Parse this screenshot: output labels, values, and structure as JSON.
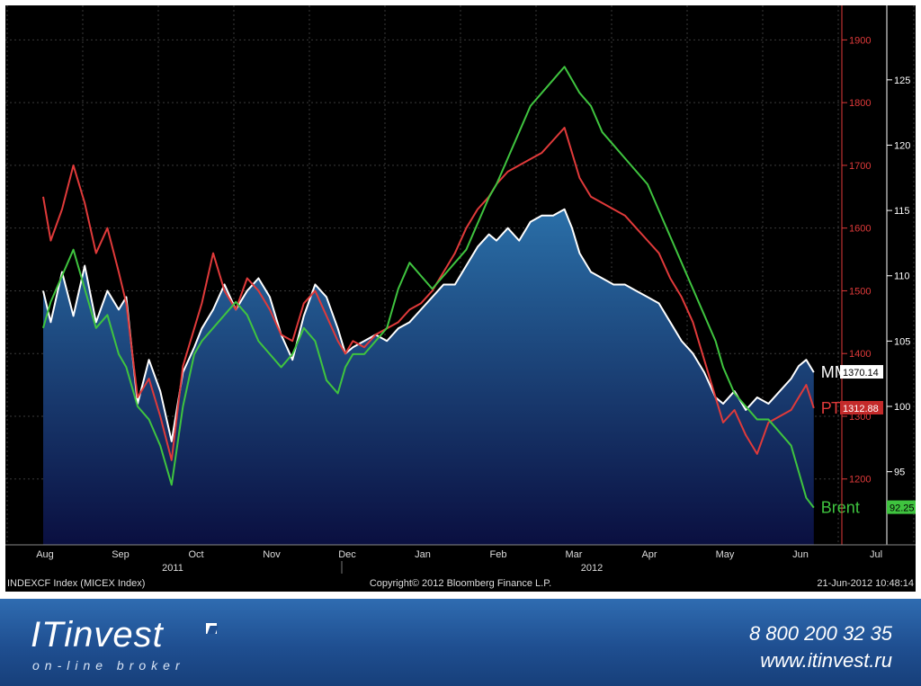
{
  "chart_data": {
    "type": "line",
    "x_labels": [
      "Aug",
      "Sep",
      "Oct",
      "Nov",
      "Dec",
      "Jan",
      "Feb",
      "Mar",
      "Apr",
      "May",
      "Jun",
      "Jul"
    ],
    "year_labels": [
      "2011",
      "2012"
    ],
    "left_axis_ticks": [
      1200,
      1300,
      1400,
      1500,
      1600,
      1700,
      1800,
      1900
    ],
    "right_axis_ticks": [
      95,
      100,
      105,
      110,
      115,
      120,
      125
    ],
    "ylim_left": [
      1095,
      1955
    ],
    "ylim_right": [
      89.4,
      130.7
    ],
    "series": [
      {
        "name": "ММВБ",
        "axis": "left",
        "color": "#ffffff",
        "last_value": "1370.14",
        "values": [
          [
            0,
            1500
          ],
          [
            0.1,
            1450
          ],
          [
            0.25,
            1530
          ],
          [
            0.4,
            1460
          ],
          [
            0.55,
            1540
          ],
          [
            0.7,
            1450
          ],
          [
            0.85,
            1500
          ],
          [
            1.0,
            1470
          ],
          [
            1.1,
            1490
          ],
          [
            1.25,
            1320
          ],
          [
            1.4,
            1390
          ],
          [
            1.55,
            1340
          ],
          [
            1.7,
            1260
          ],
          [
            1.85,
            1370
          ],
          [
            2.0,
            1410
          ],
          [
            2.1,
            1440
          ],
          [
            2.25,
            1470
          ],
          [
            2.4,
            1510
          ],
          [
            2.55,
            1470
          ],
          [
            2.7,
            1500
          ],
          [
            2.85,
            1520
          ],
          [
            3.0,
            1490
          ],
          [
            3.15,
            1430
          ],
          [
            3.3,
            1390
          ],
          [
            3.45,
            1460
          ],
          [
            3.6,
            1510
          ],
          [
            3.75,
            1490
          ],
          [
            3.9,
            1440
          ],
          [
            4.0,
            1400
          ],
          [
            4.1,
            1410
          ],
          [
            4.25,
            1420
          ],
          [
            4.4,
            1430
          ],
          [
            4.55,
            1420
          ],
          [
            4.7,
            1440
          ],
          [
            4.85,
            1450
          ],
          [
            5.0,
            1470
          ],
          [
            5.15,
            1490
          ],
          [
            5.3,
            1510
          ],
          [
            5.45,
            1510
          ],
          [
            5.6,
            1540
          ],
          [
            5.75,
            1570
          ],
          [
            5.9,
            1590
          ],
          [
            6.0,
            1580
          ],
          [
            6.15,
            1600
          ],
          [
            6.3,
            1580
          ],
          [
            6.45,
            1610
          ],
          [
            6.6,
            1620
          ],
          [
            6.75,
            1620
          ],
          [
            6.9,
            1630
          ],
          [
            7.0,
            1600
          ],
          [
            7.1,
            1560
          ],
          [
            7.25,
            1530
          ],
          [
            7.4,
            1520
          ],
          [
            7.55,
            1510
          ],
          [
            7.7,
            1510
          ],
          [
            7.85,
            1500
          ],
          [
            8.0,
            1490
          ],
          [
            8.15,
            1480
          ],
          [
            8.3,
            1450
          ],
          [
            8.45,
            1420
          ],
          [
            8.6,
            1400
          ],
          [
            8.75,
            1370
          ],
          [
            8.9,
            1330
          ],
          [
            9.0,
            1320
          ],
          [
            9.15,
            1340
          ],
          [
            9.3,
            1310
          ],
          [
            9.45,
            1330
          ],
          [
            9.6,
            1320
          ],
          [
            9.75,
            1340
          ],
          [
            9.9,
            1360
          ],
          [
            10.0,
            1380
          ],
          [
            10.1,
            1390
          ],
          [
            10.2,
            1370
          ]
        ]
      },
      {
        "name": "РТС",
        "axis": "left",
        "color": "#e03a3a",
        "last_value": "1312.88",
        "values": [
          [
            0,
            1650
          ],
          [
            0.1,
            1580
          ],
          [
            0.25,
            1630
          ],
          [
            0.4,
            1700
          ],
          [
            0.55,
            1640
          ],
          [
            0.7,
            1560
          ],
          [
            0.85,
            1600
          ],
          [
            1.0,
            1530
          ],
          [
            1.1,
            1480
          ],
          [
            1.25,
            1330
          ],
          [
            1.4,
            1360
          ],
          [
            1.55,
            1300
          ],
          [
            1.7,
            1230
          ],
          [
            1.85,
            1380
          ],
          [
            2.0,
            1440
          ],
          [
            2.1,
            1480
          ],
          [
            2.25,
            1560
          ],
          [
            2.4,
            1500
          ],
          [
            2.55,
            1470
          ],
          [
            2.7,
            1520
          ],
          [
            2.85,
            1500
          ],
          [
            3.0,
            1470
          ],
          [
            3.15,
            1430
          ],
          [
            3.3,
            1420
          ],
          [
            3.45,
            1480
          ],
          [
            3.6,
            1500
          ],
          [
            3.75,
            1460
          ],
          [
            3.9,
            1420
          ],
          [
            4.0,
            1400
          ],
          [
            4.1,
            1420
          ],
          [
            4.25,
            1410
          ],
          [
            4.4,
            1430
          ],
          [
            4.55,
            1440
          ],
          [
            4.7,
            1450
          ],
          [
            4.85,
            1470
          ],
          [
            5.0,
            1480
          ],
          [
            5.15,
            1500
          ],
          [
            5.3,
            1530
          ],
          [
            5.45,
            1560
          ],
          [
            5.6,
            1600
          ],
          [
            5.75,
            1630
          ],
          [
            5.9,
            1650
          ],
          [
            6.0,
            1670
          ],
          [
            6.15,
            1690
          ],
          [
            6.3,
            1700
          ],
          [
            6.45,
            1710
          ],
          [
            6.6,
            1720
          ],
          [
            6.75,
            1740
          ],
          [
            6.9,
            1760
          ],
          [
            7.0,
            1720
          ],
          [
            7.1,
            1680
          ],
          [
            7.25,
            1650
          ],
          [
            7.4,
            1640
          ],
          [
            7.55,
            1630
          ],
          [
            7.7,
            1620
          ],
          [
            7.85,
            1600
          ],
          [
            8.0,
            1580
          ],
          [
            8.15,
            1560
          ],
          [
            8.3,
            1520
          ],
          [
            8.45,
            1490
          ],
          [
            8.6,
            1450
          ],
          [
            8.75,
            1390
          ],
          [
            8.9,
            1330
          ],
          [
            9.0,
            1290
          ],
          [
            9.15,
            1310
          ],
          [
            9.3,
            1270
          ],
          [
            9.45,
            1240
          ],
          [
            9.6,
            1290
          ],
          [
            9.75,
            1300
          ],
          [
            9.9,
            1310
          ],
          [
            10.0,
            1330
          ],
          [
            10.1,
            1350
          ],
          [
            10.2,
            1313
          ]
        ]
      },
      {
        "name": "Brent",
        "axis": "right",
        "color": "#3fc43f",
        "last_value": "92.25",
        "values": [
          [
            0,
            106
          ],
          [
            0.1,
            108
          ],
          [
            0.25,
            110
          ],
          [
            0.4,
            112
          ],
          [
            0.55,
            109
          ],
          [
            0.7,
            106
          ],
          [
            0.85,
            107
          ],
          [
            1.0,
            104
          ],
          [
            1.1,
            103
          ],
          [
            1.25,
            100
          ],
          [
            1.4,
            99
          ],
          [
            1.55,
            97
          ],
          [
            1.7,
            94
          ],
          [
            1.85,
            100
          ],
          [
            2.0,
            104
          ],
          [
            2.1,
            105
          ],
          [
            2.25,
            106
          ],
          [
            2.4,
            107
          ],
          [
            2.55,
            108
          ],
          [
            2.7,
            107
          ],
          [
            2.85,
            105
          ],
          [
            3.0,
            104
          ],
          [
            3.15,
            103
          ],
          [
            3.3,
            104
          ],
          [
            3.45,
            106
          ],
          [
            3.6,
            105
          ],
          [
            3.75,
            102
          ],
          [
            3.9,
            101
          ],
          [
            4.0,
            103
          ],
          [
            4.1,
            104
          ],
          [
            4.25,
            104
          ],
          [
            4.4,
            105
          ],
          [
            4.55,
            106
          ],
          [
            4.7,
            109
          ],
          [
            4.85,
            111
          ],
          [
            5.0,
            110
          ],
          [
            5.15,
            109
          ],
          [
            5.3,
            110
          ],
          [
            5.45,
            111
          ],
          [
            5.6,
            112
          ],
          [
            5.75,
            114
          ],
          [
            5.9,
            116
          ],
          [
            6.0,
            117
          ],
          [
            6.15,
            119
          ],
          [
            6.3,
            121
          ],
          [
            6.45,
            123
          ],
          [
            6.6,
            124
          ],
          [
            6.75,
            125
          ],
          [
            6.9,
            126
          ],
          [
            7.0,
            125
          ],
          [
            7.1,
            124
          ],
          [
            7.25,
            123
          ],
          [
            7.4,
            121
          ],
          [
            7.55,
            120
          ],
          [
            7.7,
            119
          ],
          [
            7.85,
            118
          ],
          [
            8.0,
            117
          ],
          [
            8.15,
            115
          ],
          [
            8.3,
            113
          ],
          [
            8.45,
            111
          ],
          [
            8.6,
            109
          ],
          [
            8.75,
            107
          ],
          [
            8.9,
            105
          ],
          [
            9.0,
            103
          ],
          [
            9.15,
            101
          ],
          [
            9.3,
            100
          ],
          [
            9.45,
            99
          ],
          [
            9.6,
            99
          ],
          [
            9.75,
            98
          ],
          [
            9.9,
            97
          ],
          [
            10.0,
            95
          ],
          [
            10.1,
            93
          ],
          [
            10.2,
            92.25
          ]
        ]
      }
    ],
    "grid": true,
    "footer_left": "INDEXCF Index (MICEX Index)",
    "footer_center": "Copyright© 2012 Bloomberg Finance L.P.",
    "footer_right": "21-Jun-2012 10:48:14"
  },
  "colors": {
    "left_axis": "#e03a3a",
    "right_axis": "#ffffff",
    "area_top": "#2a6fa8",
    "area_bottom": "#0a0f40",
    "grid": "#3a3a3a"
  },
  "brand": {
    "logo": "ITinvest",
    "tagline": "on-line broker",
    "phone": "8 800 200 32 35",
    "site": "www.itinvest.ru"
  }
}
